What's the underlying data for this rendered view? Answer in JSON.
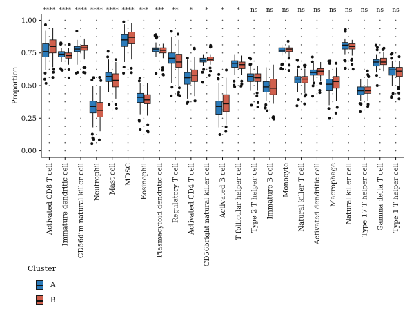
{
  "chart_data": {
    "type": "box",
    "ylabel": "Proportion",
    "xlabel": "",
    "ylim": [
      -0.05,
      1.05
    ],
    "yticks": [
      "0.00",
      "0.25",
      "0.50",
      "0.75",
      "1.00"
    ],
    "legend": {
      "title": "Cluster",
      "placement": "bottom-left"
    },
    "series": [
      {
        "name": "A",
        "color": "#2b7bba"
      },
      {
        "name": "B",
        "color": "#d0604d"
      }
    ],
    "categories": [
      "Activated CD8 T cell",
      "Immature dendritic cell",
      "CD56dim natural killer cell",
      "Neutrophil",
      "Mast cell",
      "MDSC",
      "Eosinophil",
      "Plasmacytoid dendritic cell",
      "Regulatory T cell",
      "Activated CD4 T cell",
      "CD56bright natural killer cell",
      "Activated B cell",
      "T follicular helper cell",
      "Type 2 T helper cell",
      "Immature B cell",
      "Monocyte",
      "Natural killer T cell",
      "Activated dendritic cell",
      "Macrophage",
      "Natural killer cell",
      "Type 17 T helper cell",
      "Gamma delta T cell",
      "Type 1 T helper cell"
    ],
    "significance": [
      "****",
      "****",
      "****",
      "****",
      "****",
      "****",
      "***",
      "***",
      "**",
      "*",
      "*",
      "*",
      "*",
      "ns",
      "ns",
      "ns",
      "ns",
      "ns",
      "ns",
      "ns",
      "ns",
      "ns",
      "ns"
    ],
    "boxes": [
      {
        "A": [
          0.62,
          0.72,
          0.76,
          0.82,
          0.92
        ],
        "B": [
          0.64,
          0.75,
          0.8,
          0.85,
          0.94
        ]
      },
      {
        "A": [
          0.68,
          0.72,
          0.74,
          0.76,
          0.79
        ],
        "B": [
          0.66,
          0.71,
          0.73,
          0.75,
          0.79
        ]
      },
      {
        "A": [
          0.66,
          0.76,
          0.78,
          0.8,
          0.85
        ],
        "B": [
          0.7,
          0.77,
          0.79,
          0.81,
          0.86
        ]
      },
      {
        "A": [
          0.18,
          0.29,
          0.34,
          0.38,
          0.5
        ],
        "B": [
          0.15,
          0.26,
          0.31,
          0.37,
          0.5
        ]
      },
      {
        "A": [
          0.45,
          0.53,
          0.57,
          0.6,
          0.7
        ],
        "B": [
          0.4,
          0.49,
          0.54,
          0.59,
          0.68
        ]
      },
      {
        "A": [
          0.68,
          0.8,
          0.85,
          0.89,
          0.97
        ],
        "B": [
          0.7,
          0.82,
          0.87,
          0.91,
          0.98
        ]
      },
      {
        "A": [
          0.28,
          0.37,
          0.41,
          0.44,
          0.52
        ],
        "B": [
          0.27,
          0.36,
          0.39,
          0.43,
          0.52
        ]
      },
      {
        "A": [
          0.72,
          0.76,
          0.78,
          0.79,
          0.83
        ],
        "B": [
          0.71,
          0.75,
          0.77,
          0.79,
          0.82
        ]
      },
      {
        "A": [
          0.52,
          0.67,
          0.71,
          0.75,
          0.87
        ],
        "B": [
          0.5,
          0.64,
          0.68,
          0.74,
          0.85
        ]
      },
      {
        "A": [
          0.4,
          0.51,
          0.56,
          0.6,
          0.7
        ],
        "B": [
          0.42,
          0.53,
          0.58,
          0.62,
          0.72
        ]
      },
      {
        "A": [
          0.65,
          0.68,
          0.69,
          0.71,
          0.74
        ],
        "B": [
          0.66,
          0.69,
          0.7,
          0.72,
          0.74
        ]
      },
      {
        "A": [
          0.18,
          0.28,
          0.34,
          0.38,
          0.52
        ],
        "B": [
          0.2,
          0.3,
          0.36,
          0.43,
          0.56
        ]
      },
      {
        "A": [
          0.58,
          0.64,
          0.67,
          0.69,
          0.74
        ],
        "B": [
          0.58,
          0.63,
          0.66,
          0.68,
          0.73
        ]
      },
      {
        "A": [
          0.46,
          0.53,
          0.57,
          0.59,
          0.65
        ],
        "B": [
          0.46,
          0.53,
          0.56,
          0.59,
          0.65
        ]
      },
      {
        "A": [
          0.38,
          0.45,
          0.49,
          0.53,
          0.64
        ],
        "B": [
          0.36,
          0.43,
          0.48,
          0.55,
          0.66
        ]
      },
      {
        "A": [
          0.73,
          0.76,
          0.77,
          0.79,
          0.81
        ],
        "B": [
          0.72,
          0.76,
          0.78,
          0.79,
          0.81
        ]
      },
      {
        "A": [
          0.45,
          0.52,
          0.55,
          0.57,
          0.63
        ],
        "B": [
          0.44,
          0.52,
          0.55,
          0.57,
          0.63
        ]
      },
      {
        "A": [
          0.53,
          0.58,
          0.6,
          0.62,
          0.67
        ],
        "B": [
          0.53,
          0.58,
          0.61,
          0.63,
          0.68
        ]
      },
      {
        "A": [
          0.35,
          0.46,
          0.51,
          0.55,
          0.62
        ],
        "B": [
          0.38,
          0.48,
          0.53,
          0.57,
          0.64
        ]
      },
      {
        "A": [
          0.74,
          0.78,
          0.81,
          0.83,
          0.86
        ],
        "B": [
          0.73,
          0.78,
          0.8,
          0.82,
          0.85
        ]
      },
      {
        "A": [
          0.38,
          0.43,
          0.46,
          0.49,
          0.55
        ],
        "B": [
          0.38,
          0.44,
          0.46,
          0.49,
          0.55
        ]
      },
      {
        "A": [
          0.6,
          0.65,
          0.68,
          0.7,
          0.74
        ],
        "B": [
          0.61,
          0.66,
          0.68,
          0.71,
          0.76
        ]
      },
      {
        "A": [
          0.5,
          0.58,
          0.62,
          0.64,
          0.69
        ],
        "B": [
          0.5,
          0.57,
          0.61,
          0.64,
          0.69
        ]
      }
    ]
  }
}
